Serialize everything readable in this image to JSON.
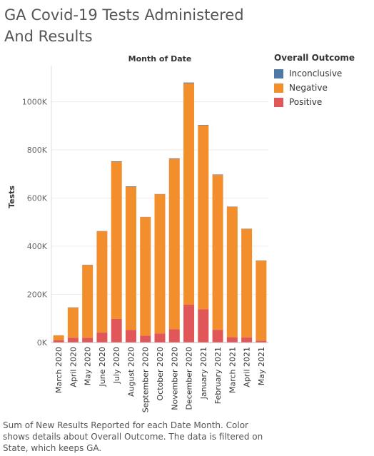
{
  "title": "GA Covid-19 Tests Administered And Results",
  "caption": "Sum of New Results Reported for each Date Month.  Color shows details about Overall Outcome. The data is filtered on State, which keeps GA.",
  "chart_data": {
    "type": "bar",
    "stacked": true,
    "top_axis_title": "Month of Date",
    "ylabel": "Tests",
    "ylim": [
      0,
      1150000
    ],
    "y_ticks": [
      {
        "value": 0,
        "label": "0K"
      },
      {
        "value": 200000,
        "label": "200K"
      },
      {
        "value": 400000,
        "label": "400K"
      },
      {
        "value": 600000,
        "label": "600K"
      },
      {
        "value": 800000,
        "label": "800K"
      },
      {
        "value": 1000000,
        "label": "1000K"
      }
    ],
    "grid": true,
    "legend_position": "right",
    "legend_title": "Overall Outcome",
    "categories": [
      "March 2020",
      "April 2020",
      "May 2020",
      "June 2020",
      "July 2020",
      "August 2020",
      "September 2020",
      "October 2020",
      "November 2020",
      "December 2020",
      "January 2021",
      "February 2021",
      "March 2021",
      "April 2021",
      "May 2021"
    ],
    "series": [
      {
        "name": "Inconclusive",
        "color": "#4e79a7",
        "values": [
          500,
          1000,
          1000,
          1000,
          2000,
          2000,
          1000,
          1000,
          2000,
          3000,
          2000,
          2000,
          1000,
          1000,
          1000
        ]
      },
      {
        "name": "Negative",
        "color": "#f28e2b",
        "values": [
          19500,
          125000,
          302000,
          420000,
          653000,
          595000,
          492000,
          578000,
          708000,
          920000,
          764000,
          643000,
          542000,
          451000,
          332000
        ]
      },
      {
        "name": "Positive",
        "color": "#e15759",
        "values": [
          10000,
          20000,
          20000,
          42000,
          98000,
          52000,
          29000,
          38000,
          55000,
          157000,
          138000,
          53000,
          22000,
          21000,
          8000
        ]
      }
    ]
  }
}
